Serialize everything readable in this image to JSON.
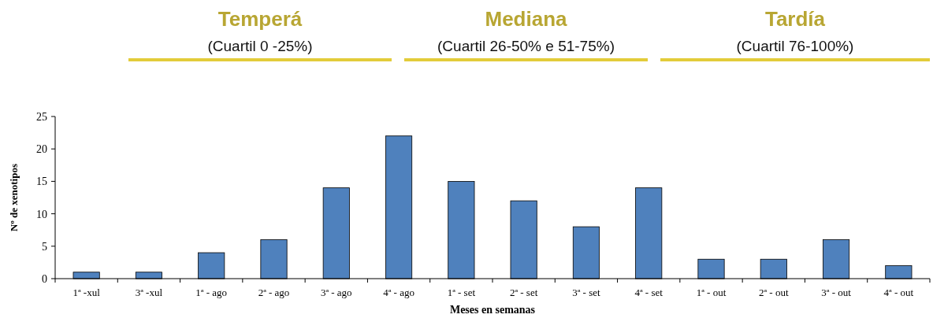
{
  "chart_data": {
    "type": "bar",
    "xlabel": "Meses en semanas",
    "ylabel": "Nº de xenotipos",
    "categories": [
      "1ª -xul",
      "3ª -xul",
      "1ª - ago",
      "2ª - ago",
      "3ª - ago",
      "4ª - ago",
      "1ª - set",
      "2ª - set",
      "3ª - set",
      "4ª - set",
      "1ª - out",
      "2ª - out",
      "3ª - out",
      "4ª - out"
    ],
    "values": [
      1,
      1,
      4,
      6,
      14,
      22,
      15,
      12,
      8,
      14,
      3,
      3,
      6,
      2
    ],
    "color": "#4f81bd",
    "ylim": [
      0,
      25
    ],
    "yticks": [
      0,
      5,
      10,
      15,
      20,
      25
    ],
    "grid": false,
    "annotations": [
      "Temperá",
      "(Cuartil 0 -25%)",
      "Mediana",
      "(Cuartil 26-50% e 51-75%)",
      "Tardía",
      "(Cuartil 76-100%)"
    ]
  }
}
